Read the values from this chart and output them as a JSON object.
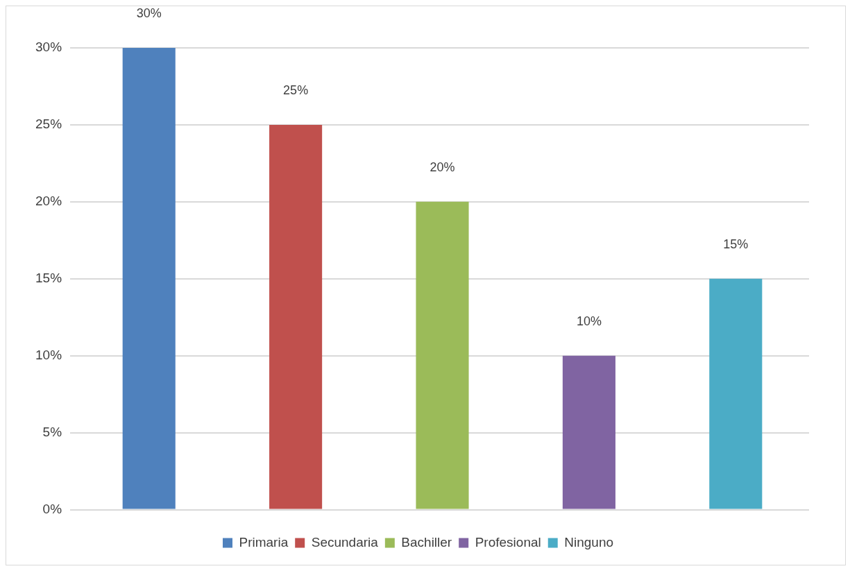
{
  "chart_data": {
    "type": "bar",
    "categories": [
      null,
      null,
      null,
      null,
      null
    ],
    "series": [
      {
        "name": "Primaria",
        "color": "#4f81bd",
        "values": [
          30,
          null,
          null,
          null,
          null
        ],
        "value_labels": [
          "30%",
          null,
          null,
          null,
          null
        ]
      },
      {
        "name": "Secundaria",
        "color": "#c0504d",
        "values": [
          null,
          25,
          null,
          null,
          null
        ],
        "value_labels": [
          null,
          "25%",
          null,
          null,
          null
        ]
      },
      {
        "name": "Bachiller",
        "color": "#9bbb59",
        "values": [
          null,
          null,
          20,
          null,
          null
        ],
        "value_labels": [
          null,
          null,
          "20%",
          null,
          null
        ]
      },
      {
        "name": "Profesional",
        "color": "#8064a2",
        "values": [
          null,
          null,
          null,
          10,
          null
        ],
        "value_labels": [
          null,
          null,
          null,
          "10%",
          null
        ]
      },
      {
        "name": "Ninguno",
        "color": "#4bacc6",
        "values": [
          null,
          null,
          null,
          null,
          15
        ],
        "value_labels": [
          null,
          null,
          null,
          null,
          "15%"
        ]
      }
    ],
    "ylim": [
      0,
      30
    ],
    "yticks": [
      {
        "value": 0,
        "label": "0%"
      },
      {
        "value": 5,
        "label": "5%"
      },
      {
        "value": 10,
        "label": "10%"
      },
      {
        "value": 15,
        "label": "15%"
      },
      {
        "value": 20,
        "label": "20%"
      },
      {
        "value": 25,
        "label": "25%"
      },
      {
        "value": 30,
        "label": "30%"
      }
    ],
    "grid": "y",
    "legend": "bottom"
  }
}
